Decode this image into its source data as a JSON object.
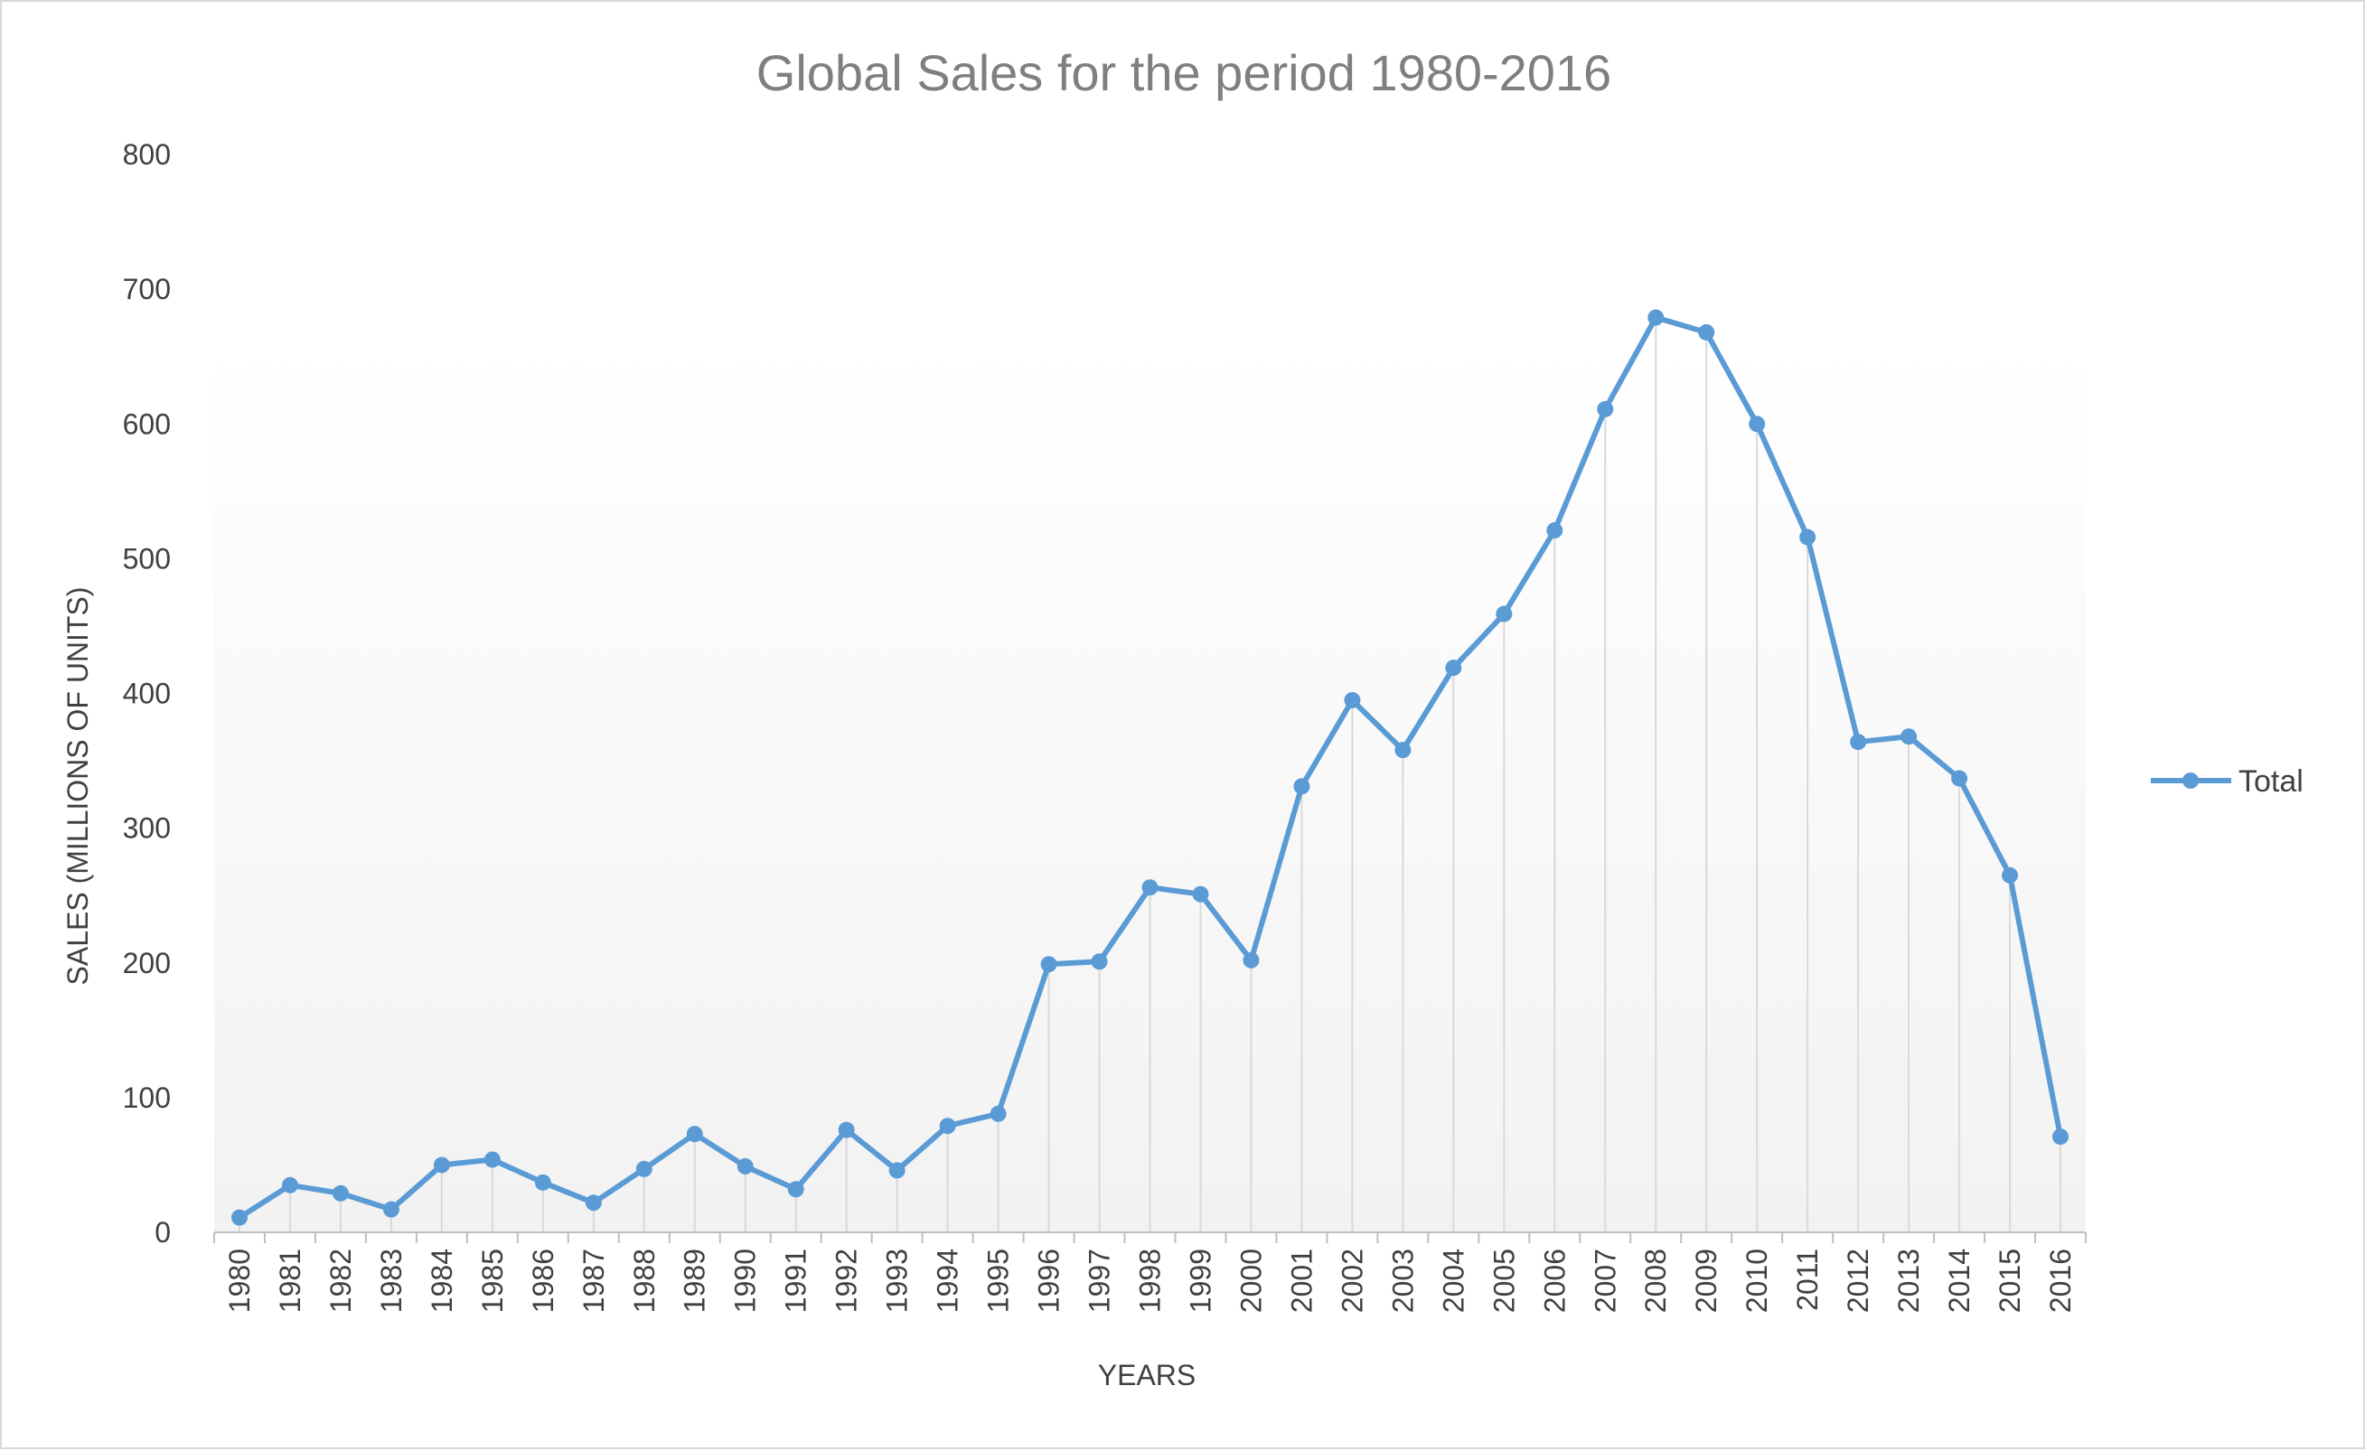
{
  "chart_data": {
    "type": "line",
    "title": "Global Sales for the period 1980-2016",
    "xlabel": "YEARS",
    "ylabel": "SALES (MILLIONS OF UNITS)",
    "ylim": [
      0,
      800
    ],
    "yticks": [
      "0",
      "100",
      "200",
      "300",
      "400",
      "500",
      "600",
      "700",
      "800"
    ],
    "grid": "vertical drop lines",
    "legend_position": "right",
    "categories": [
      "1980",
      "1981",
      "1982",
      "1983",
      "1984",
      "1985",
      "1986",
      "1987",
      "1988",
      "1989",
      "1990",
      "1991",
      "1992",
      "1993",
      "1994",
      "1995",
      "1996",
      "1997",
      "1998",
      "1999",
      "2000",
      "2001",
      "2002",
      "2003",
      "2004",
      "2005",
      "2006",
      "2007",
      "2008",
      "2009",
      "2010",
      "2011",
      "2012",
      "2013",
      "2014",
      "2015",
      "2016"
    ],
    "series": [
      {
        "name": "Total",
        "color": "#5b9bd5",
        "values": [
          11,
          35,
          29,
          17,
          50,
          54,
          37,
          22,
          47,
          73,
          49,
          32,
          76,
          46,
          79,
          88,
          199,
          201,
          256,
          251,
          202,
          331,
          395,
          358,
          419,
          459,
          521,
          611,
          679,
          668,
          600,
          516,
          364,
          368,
          337,
          265,
          71
        ]
      }
    ]
  },
  "colors": {
    "series_line": "#5b9bd5",
    "drop_lines": "#d9d9d9",
    "plot_background_top": "#ffffff",
    "plot_background_bottom": "#f2f2f2",
    "title": "#7f7f7f",
    "text": "#404040"
  }
}
